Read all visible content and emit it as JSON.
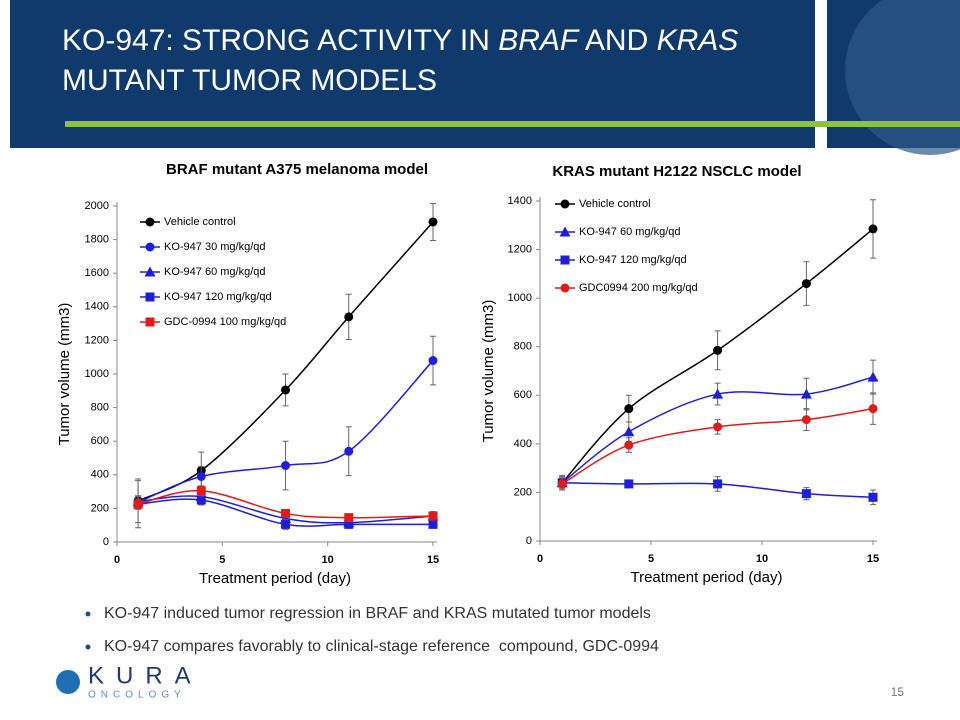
{
  "title": {
    "line1": [
      "KO-947: STRONG ACTIVITY IN ",
      "BRAF",
      " AND ",
      "KRAS"
    ],
    "line2": "MUTANT TUMOR MODELS"
  },
  "bullets": [
    "KO-947 induced tumor regression in BRAF and KRAS mutated tumor models",
    "KO-947 compares favorably to clinical-stage reference  compound, GDC-0994"
  ],
  "logo": {
    "name": "KURA",
    "tagline": "ONCOLOGY"
  },
  "page_number": "15",
  "chart_data": [
    {
      "type": "line",
      "title": "BRAF mutant A375 melanoma model",
      "x_label": "Treatment period (day)",
      "y_label": "Tumor volume (mm3)",
      "x": [
        1,
        4,
        8,
        11,
        15
      ],
      "xlim": [
        0,
        15
      ],
      "xticks": [
        0,
        5,
        10,
        15
      ],
      "ylim": [
        0,
        2000
      ],
      "yticks": [
        0,
        200,
        400,
        600,
        800,
        1000,
        1200,
        1400,
        1600,
        1800,
        2000
      ],
      "series": [
        {
          "name": "Vehicle control",
          "color": "#000000",
          "marker": "circle",
          "values": [
            245,
            425,
            905,
            1340,
            1905
          ],
          "errors": [
            130,
            110,
            95,
            135,
            110
          ]
        },
        {
          "name": "KO-947 30 mg/kg/qd",
          "color": "#1f1fd6",
          "marker": "circle",
          "values": [
            235,
            390,
            455,
            540,
            1080
          ],
          "errors": [
            40,
            60,
            145,
            145,
            145
          ]
        },
        {
          "name": "KO-947 60 mg/kg/qd",
          "color": "#1f1fd6",
          "marker": "triangle",
          "values": [
            240,
            270,
            140,
            115,
            155
          ],
          "errors": [
            30,
            40,
            30,
            20,
            25
          ]
        },
        {
          "name": "KO-947 120 mg/kg/qd",
          "color": "#1f1fd6",
          "marker": "square",
          "values": [
            225,
            250,
            105,
            105,
            105
          ],
          "errors": [
            140,
            30,
            30,
            20,
            15
          ]
        },
        {
          "name": "GDC-0994 100 mg/kg/qd",
          "color": "#e01b1b",
          "marker": "square",
          "values": [
            225,
            305,
            170,
            145,
            155
          ],
          "errors": [
            30,
            30,
            20,
            15,
            25
          ]
        }
      ]
    },
    {
      "type": "line",
      "title": "KRAS mutant H2122 NSCLC model",
      "x_label": "Treatment period (day)",
      "y_label": "Tumor volume (mm3)",
      "x": [
        1,
        4,
        8,
        12,
        15
      ],
      "xlim": [
        0,
        15
      ],
      "xticks": [
        0,
        5,
        10,
        15
      ],
      "ylim": [
        0,
        1400
      ],
      "yticks": [
        0,
        200,
        400,
        600,
        800,
        1000,
        1200,
        1400
      ],
      "series": [
        {
          "name": "Vehicle control",
          "color": "#000000",
          "marker": "circle",
          "values": [
            240,
            545,
            785,
            1060,
            1285
          ],
          "errors": [
            30,
            55,
            80,
            90,
            120
          ]
        },
        {
          "name": "KO-947 60 mg/kg/qd",
          "color": "#1f1fd6",
          "marker": "triangle",
          "values": [
            240,
            450,
            605,
            605,
            675
          ],
          "errors": [
            25,
            40,
            45,
            65,
            70
          ]
        },
        {
          "name": "KO-947 120 mg/kg/qd",
          "color": "#1f1fd6",
          "marker": "square",
          "values": [
            240,
            235,
            235,
            195,
            180
          ],
          "errors": [
            20,
            15,
            30,
            25,
            30
          ]
        },
        {
          "name": "GDC0994 200 mg/kg/qd",
          "color": "#e01b1b",
          "marker": "circle",
          "values": [
            235,
            395,
            470,
            500,
            545
          ],
          "errors": [
            25,
            30,
            30,
            45,
            65
          ]
        }
      ]
    }
  ]
}
